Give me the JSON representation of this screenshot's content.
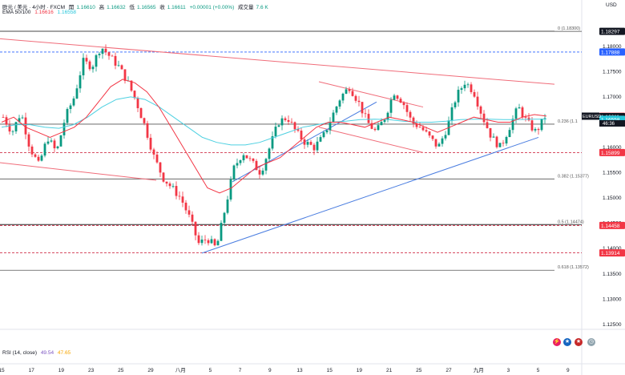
{
  "header": {
    "symbol_line": "欧元 / 美元 · 4小时 · FXCM",
    "open_label": "開",
    "open": "1.16610",
    "high_label": "高",
    "high": "1.16632",
    "low_label": "低",
    "low": "1.16565",
    "close_label": "收",
    "close": "1.16611",
    "change": "+0.00001 (+0.00%)",
    "volume_label": "成交量",
    "volume": "7.6 K",
    "ema_label": "EMA 50/100",
    "ema50": "1.16616",
    "ema100": "1.16558"
  },
  "currency": "USD",
  "rsi": {
    "label": "RSI (14, close)",
    "value1": "49.54",
    "value2": "47.65"
  },
  "symbol_tag": "EURUSD",
  "countdown": "46:36",
  "colors": {
    "up": "#089981",
    "down": "#f23645",
    "ema50": "#f23645",
    "ema100": "#4dd0e1",
    "trend_red": "#f06d7a",
    "trend_blue": "#4a7de0",
    "fib": "#555555",
    "level": "#c8102e",
    "blue_level": "#2962ff"
  },
  "chart_data": {
    "type": "candlestick",
    "ylim": [
      1.1245,
      1.186
    ],
    "y_ticks": [
      "1.18000",
      "1.17500",
      "1.17000",
      "1.16500",
      "1.16000",
      "1.15500",
      "1.15000",
      "1.14500",
      "1.14000",
      "1.13500",
      "1.13000",
      "1.12500"
    ],
    "x_ticks": [
      "15",
      "17",
      "19",
      "23",
      "25",
      "29",
      "八月",
      "5",
      "7",
      "9",
      "13",
      "15",
      "19",
      "21",
      "25",
      "27",
      "九月",
      "3",
      "5",
      "9"
    ],
    "price_labels": [
      {
        "value": 1.18297,
        "text": "1.18297",
        "style": "line-dark"
      },
      {
        "value": 1.17888,
        "text": "1.17888",
        "style": "blue"
      },
      {
        "value": 1.16616,
        "text": "1.16616",
        "style": "red"
      },
      {
        "value": 1.16611,
        "text": "1.16611",
        "style": "black"
      },
      {
        "value": 1.16558,
        "text": "1.16558",
        "style": "cyan"
      },
      {
        "value": 1.15899,
        "text": "1.15899",
        "style": "red"
      },
      {
        "value": 1.14458,
        "text": "1.14458",
        "style": "red"
      },
      {
        "value": 1.13914,
        "text": "1.13914",
        "style": "red"
      }
    ],
    "fib_levels": [
      {
        "value": 1.183,
        "text": "0 (1.18300)"
      },
      {
        "value": 1.16461,
        "text": "0.236 (1.1"
      },
      {
        "value": 1.15377,
        "text": "0.382 (1.15377)"
      },
      {
        "value": 1.14474,
        "text": "0.5 (1.14474)"
      },
      {
        "value": 1.13572,
        "text": "0.618 (1.13572)"
      }
    ],
    "h_levels": [
      {
        "value": 1.17888,
        "style": "blue-dash"
      },
      {
        "value": 1.15899,
        "style": "red-dash"
      },
      {
        "value": 1.14458,
        "style": "red-dash"
      },
      {
        "value": 1.13914,
        "style": "red-dash"
      }
    ],
    "candle_path": [
      [
        1.166,
        6
      ],
      [
        1.163,
        4
      ],
      [
        1.167,
        5
      ],
      [
        1.16,
        6
      ],
      [
        1.1565,
        5
      ],
      [
        1.162,
        6
      ],
      [
        1.159,
        5
      ],
      [
        1.166,
        6
      ],
      [
        1.17,
        5
      ],
      [
        1.177,
        6
      ],
      [
        1.176,
        4
      ],
      [
        1.18,
        5
      ],
      [
        1.178,
        4
      ],
      [
        1.176,
        4
      ],
      [
        1.173,
        4
      ],
      [
        1.169,
        4
      ],
      [
        1.164,
        3
      ],
      [
        1.158,
        3
      ],
      [
        1.154,
        3
      ],
      [
        1.152,
        2
      ],
      [
        1.15,
        2
      ],
      [
        1.146,
        3
      ],
      [
        1.141,
        3
      ],
      [
        1.142,
        2
      ],
      [
        1.14,
        2
      ],
      [
        1.148,
        3
      ],
      [
        1.156,
        5
      ],
      [
        1.159,
        5
      ],
      [
        1.157,
        4
      ],
      [
        1.155,
        3
      ],
      [
        1.16,
        4
      ],
      [
        1.165,
        4
      ],
      [
        1.166,
        3
      ],
      [
        1.163,
        3
      ],
      [
        1.161,
        3
      ],
      [
        1.16,
        3
      ],
      [
        1.162,
        3
      ],
      [
        1.166,
        4
      ],
      [
        1.17,
        4
      ],
      [
        1.172,
        3
      ],
      [
        1.169,
        3
      ],
      [
        1.165,
        3
      ],
      [
        1.163,
        3
      ],
      [
        1.166,
        3
      ],
      [
        1.171,
        3
      ],
      [
        1.169,
        3
      ],
      [
        1.165,
        3
      ],
      [
        1.164,
        3
      ],
      [
        1.162,
        3
      ],
      [
        1.16,
        3
      ],
      [
        1.164,
        3
      ],
      [
        1.17,
        3
      ],
      [
        1.173,
        3
      ],
      [
        1.171,
        3
      ],
      [
        1.166,
        3
      ],
      [
        1.162,
        3
      ],
      [
        1.16,
        3
      ],
      [
        1.164,
        3
      ],
      [
        1.168,
        3
      ],
      [
        1.165,
        3
      ],
      [
        1.163,
        3
      ],
      [
        1.1661,
        3
      ]
    ],
    "ema50": [
      [
        1.165,
        1.166,
        1.164,
        1.163,
        1.162,
        1.163,
        1.164,
        1.166,
        1.169,
        1.172,
        1.1735,
        1.1728,
        1.171,
        1.168,
        1.164,
        1.16,
        1.156,
        1.152,
        1.151,
        1.152,
        1.154,
        1.156,
        1.157,
        1.158,
        1.16,
        1.162,
        1.164,
        1.165,
        1.165,
        1.1645,
        1.164,
        1.165,
        1.166,
        1.1655,
        1.165,
        1.164,
        1.163,
        1.164,
        1.165,
        1.166,
        1.1655,
        1.165,
        1.165,
        1.166,
        1.1665,
        1.1662
      ]
    ],
    "ema100": [
      [
        1.164,
        1.1645,
        1.1645,
        1.164,
        1.1638,
        1.1645,
        1.166,
        1.168,
        1.1695,
        1.17,
        1.1695,
        1.168,
        1.166,
        1.164,
        1.162,
        1.161,
        1.1605,
        1.1605,
        1.161,
        1.162,
        1.163,
        1.164,
        1.1645,
        1.165,
        1.1652,
        1.1655,
        1.1656,
        1.1655,
        1.1652,
        1.165,
        1.165,
        1.1652,
        1.1655,
        1.1656,
        1.1656,
        1.1655,
        1.1655,
        1.1656,
        1.1656
      ]
    ]
  }
}
